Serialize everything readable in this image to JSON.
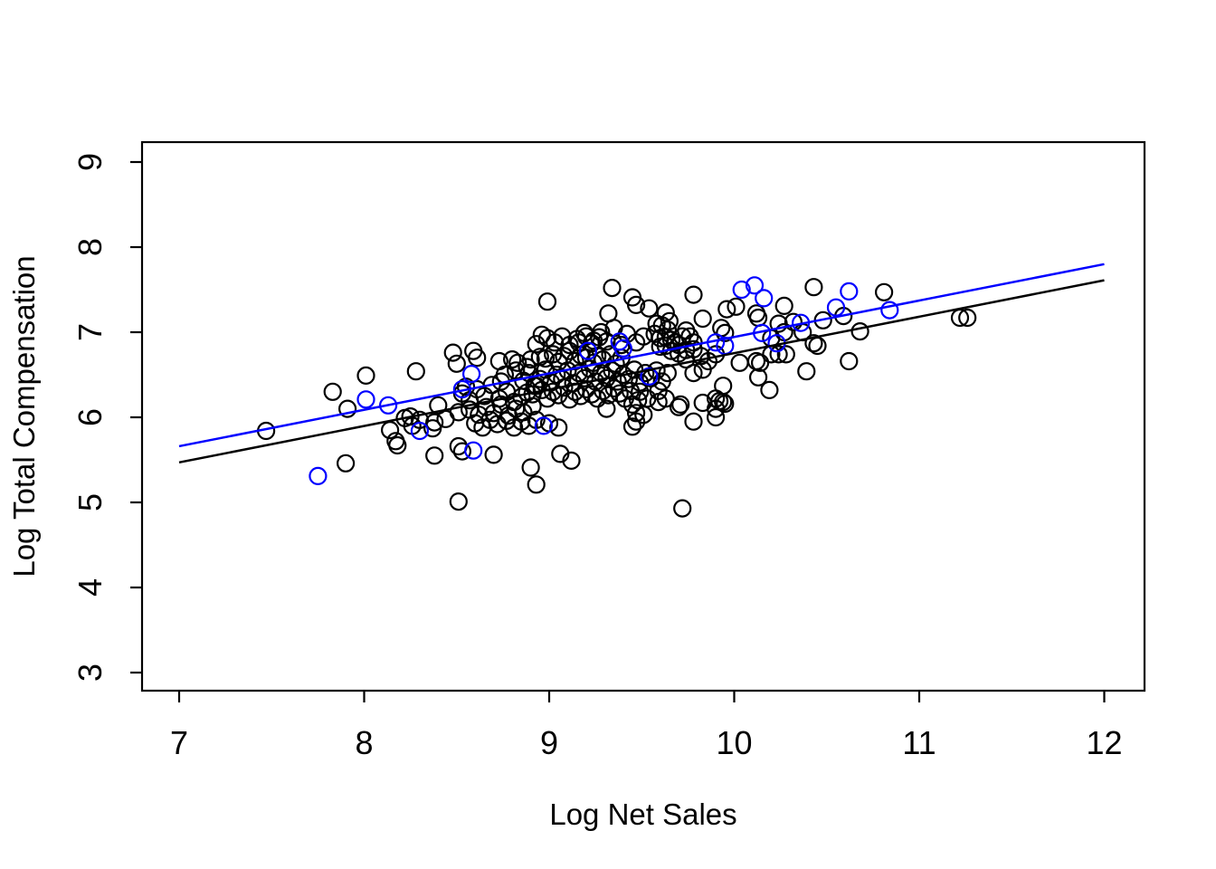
{
  "figure": {
    "xlabel": "Log Net Sales",
    "ylabel": "Log Total Compensation"
  },
  "colors": {
    "background": "#ffffff",
    "points_default": "#000000",
    "points_highlight": "#0000ff",
    "fit_line_default": "#000000",
    "fit_line_highlight": "#0000ff",
    "axis": "#000000"
  },
  "chart_data": {
    "type": "scatter",
    "title": "",
    "xlabel": "Log Net Sales",
    "ylabel": "Log Total Compensation",
    "xlim": [
      7,
      12
    ],
    "ylim": [
      3,
      9
    ],
    "x_ticks": [
      7,
      8,
      9,
      10,
      11,
      12
    ],
    "y_ticks": [
      3,
      4,
      5,
      6,
      7,
      8,
      9
    ],
    "grid": false,
    "legend": "none",
    "marker": "open-circle",
    "series": [
      {
        "name": "observations-black",
        "color": "#000000",
        "points": [
          [
            7.47,
            5.84
          ],
          [
            7.83,
            6.3
          ],
          [
            7.9,
            5.46
          ],
          [
            7.91,
            6.1
          ],
          [
            8.01,
            6.49
          ],
          [
            8.14,
            5.85
          ],
          [
            8.17,
            5.72
          ],
          [
            8.18,
            5.67
          ],
          [
            8.22,
            5.99
          ],
          [
            8.25,
            6.01
          ],
          [
            8.26,
            5.9
          ],
          [
            8.28,
            6.54
          ],
          [
            8.3,
            5.97
          ],
          [
            8.37,
            5.87
          ],
          [
            8.38,
            5.94
          ],
          [
            8.38,
            5.55
          ],
          [
            8.4,
            6.14
          ],
          [
            8.44,
            5.98
          ],
          [
            8.48,
            6.76
          ],
          [
            8.5,
            6.63
          ],
          [
            8.51,
            6.06
          ],
          [
            8.51,
            5.66
          ],
          [
            8.53,
            5.6
          ],
          [
            8.51,
            5.01
          ],
          [
            8.55,
            6.36
          ],
          [
            8.59,
            6.78
          ],
          [
            8.61,
            6.7
          ],
          [
            8.7,
            5.56
          ],
          [
            8.9,
            5.41
          ],
          [
            8.93,
            5.21
          ],
          [
            8.96,
            6.97
          ],
          [
            8.93,
            6.86
          ],
          [
            8.99,
            7.36
          ],
          [
            8.73,
            6.66
          ],
          [
            8.8,
            6.68
          ],
          [
            8.83,
            6.64
          ],
          [
            8.88,
            6.59
          ],
          [
            8.9,
            6.68
          ],
          [
            8.95,
            6.71
          ],
          [
            8.98,
            6.69
          ],
          [
            9.02,
            6.74
          ],
          [
            9.05,
            6.65
          ],
          [
            9.08,
            6.72
          ],
          [
            9.11,
            6.78
          ],
          [
            9.14,
            6.66
          ],
          [
            9.17,
            6.73
          ],
          [
            9.2,
            6.7
          ],
          [
            9.24,
            6.64
          ],
          [
            9.26,
            6.72
          ],
          [
            9.29,
            6.68
          ],
          [
            9.33,
            6.74
          ],
          [
            9.36,
            6.63
          ],
          [
            9.39,
            6.7
          ],
          [
            8.74,
            6.42
          ],
          [
            8.76,
            6.5
          ],
          [
            8.82,
            6.55
          ],
          [
            8.86,
            6.43
          ],
          [
            8.89,
            6.52
          ],
          [
            8.92,
            6.37
          ],
          [
            8.95,
            6.45
          ],
          [
            8.98,
            6.56
          ],
          [
            9.01,
            6.41
          ],
          [
            9.04,
            6.5
          ],
          [
            9.07,
            6.45
          ],
          [
            9.1,
            6.55
          ],
          [
            9.13,
            6.4
          ],
          [
            9.16,
            6.52
          ],
          [
            9.19,
            6.46
          ],
          [
            9.22,
            6.57
          ],
          [
            9.25,
            6.42
          ],
          [
            9.28,
            6.52
          ],
          [
            9.31,
            6.46
          ],
          [
            9.34,
            6.55
          ],
          [
            9.37,
            6.42
          ],
          [
            9.4,
            6.5
          ],
          [
            9.43,
            6.45
          ],
          [
            9.46,
            6.56
          ],
          [
            9.49,
            6.41
          ],
          [
            9.52,
            6.52
          ],
          [
            9.55,
            6.46
          ],
          [
            9.58,
            6.55
          ],
          [
            9.61,
            6.42
          ],
          [
            9.64,
            6.52
          ],
          [
            8.53,
            6.28
          ],
          [
            8.57,
            6.2
          ],
          [
            8.61,
            6.33
          ],
          [
            8.65,
            6.25
          ],
          [
            8.69,
            6.38
          ],
          [
            8.73,
            6.22
          ],
          [
            8.77,
            6.3
          ],
          [
            8.81,
            6.18
          ],
          [
            8.85,
            6.24
          ],
          [
            8.88,
            6.29
          ],
          [
            8.91,
            6.27
          ],
          [
            8.93,
            6.37
          ],
          [
            8.96,
            6.32
          ],
          [
            8.99,
            6.22
          ],
          [
            9.02,
            6.3
          ],
          [
            9.05,
            6.26
          ],
          [
            9.08,
            6.35
          ],
          [
            9.11,
            6.21
          ],
          [
            9.14,
            6.3
          ],
          [
            9.17,
            6.25
          ],
          [
            9.2,
            6.33
          ],
          [
            9.23,
            6.27
          ],
          [
            9.26,
            6.22
          ],
          [
            9.29,
            6.31
          ],
          [
            9.32,
            6.26
          ],
          [
            9.35,
            6.34
          ],
          [
            9.38,
            6.28
          ],
          [
            9.41,
            6.22
          ],
          [
            9.44,
            6.31
          ],
          [
            9.49,
            6.3
          ],
          [
            9.53,
            6.22
          ],
          [
            9.59,
            6.31
          ],
          [
            9.63,
            6.22
          ],
          [
            8.57,
            6.09
          ],
          [
            8.62,
            6.03
          ],
          [
            8.66,
            6.12
          ],
          [
            8.7,
            6.05
          ],
          [
            8.74,
            6.15
          ],
          [
            8.78,
            6.02
          ],
          [
            8.82,
            6.1
          ],
          [
            8.86,
            6.06
          ],
          [
            8.91,
            6.13
          ],
          [
            9.31,
            6.1
          ],
          [
            9.45,
            6.15
          ],
          [
            9.48,
            6.2
          ],
          [
            9.47,
            6.05
          ],
          [
            9.51,
            6.03
          ],
          [
            9.59,
            6.18
          ],
          [
            9.7,
            6.12
          ],
          [
            9.9,
            6.0
          ],
          [
            9.92,
            6.19
          ],
          [
            9.95,
            6.16
          ],
          [
            8.6,
            5.93
          ],
          [
            8.64,
            5.88
          ],
          [
            8.68,
            5.97
          ],
          [
            8.72,
            5.92
          ],
          [
            8.77,
            5.96
          ],
          [
            8.81,
            5.88
          ],
          [
            8.85,
            5.95
          ],
          [
            8.89,
            5.9
          ],
          [
            8.93,
            5.97
          ],
          [
            9.0,
            5.93
          ],
          [
            9.05,
            5.88
          ],
          [
            9.45,
            5.89
          ],
          [
            9.47,
            5.95
          ],
          [
            9.78,
            5.95
          ],
          [
            9.06,
            5.57
          ],
          [
            9.12,
            5.49
          ],
          [
            9.72,
            4.93
          ],
          [
            8.99,
            6.93
          ],
          [
            9.03,
            6.88
          ],
          [
            9.07,
            6.95
          ],
          [
            9.11,
            6.85
          ],
          [
            9.15,
            6.92
          ],
          [
            9.16,
            6.88
          ],
          [
            9.19,
            6.99
          ],
          [
            9.2,
            6.95
          ],
          [
            9.23,
            6.87
          ],
          [
            9.24,
            6.9
          ],
          [
            9.27,
            6.94
          ],
          [
            9.28,
            7.0
          ],
          [
            9.31,
            6.89
          ],
          [
            9.35,
            7.05
          ],
          [
            9.39,
            6.85
          ],
          [
            9.42,
            6.98
          ],
          [
            9.47,
            6.88
          ],
          [
            9.51,
            6.95
          ],
          [
            9.57,
            6.98
          ],
          [
            9.6,
            6.93
          ],
          [
            9.6,
            6.83
          ],
          [
            9.64,
            7.03
          ],
          [
            9.66,
            6.78
          ],
          [
            9.68,
            6.88
          ],
          [
            9.7,
            6.85
          ],
          [
            9.72,
            6.95
          ],
          [
            9.74,
            6.79
          ],
          [
            9.78,
            6.88
          ],
          [
            9.32,
            7.22
          ],
          [
            9.34,
            7.52
          ],
          [
            9.45,
            7.41
          ],
          [
            9.47,
            7.32
          ],
          [
            9.54,
            7.28
          ],
          [
            9.58,
            7.1
          ],
          [
            9.61,
            7.08
          ],
          [
            9.63,
            7.23
          ],
          [
            9.63,
            6.94
          ],
          [
            9.63,
            6.84
          ],
          [
            9.65,
            7.13
          ],
          [
            9.66,
            6.91
          ],
          [
            9.74,
            7.02
          ],
          [
            9.76,
            6.95
          ],
          [
            9.78,
            7.44
          ],
          [
            9.83,
            7.16
          ],
          [
            9.96,
            7.27
          ],
          [
            10.01,
            7.3
          ],
          [
            9.7,
            6.75
          ],
          [
            9.74,
            6.68
          ],
          [
            9.78,
            6.8
          ],
          [
            9.82,
            6.72
          ],
          [
            9.86,
            6.66
          ],
          [
            9.9,
            6.74
          ],
          [
            9.93,
            7.05
          ],
          [
            9.95,
            6.99
          ],
          [
            9.78,
            6.52
          ],
          [
            9.83,
            6.56
          ],
          [
            9.71,
            6.15
          ],
          [
            9.83,
            6.17
          ],
          [
            9.9,
            6.22
          ],
          [
            9.9,
            6.1
          ],
          [
            9.94,
            6.37
          ],
          [
            9.94,
            6.18
          ],
          [
            10.03,
            6.64
          ],
          [
            10.12,
            6.66
          ],
          [
            10.14,
            6.64
          ],
          [
            10.2,
            6.74
          ],
          [
            10.24,
            6.74
          ],
          [
            10.28,
            6.74
          ],
          [
            10.13,
            6.47
          ],
          [
            10.19,
            6.32
          ],
          [
            10.39,
            6.54
          ],
          [
            10.62,
            6.66
          ],
          [
            10.43,
            6.87
          ],
          [
            10.45,
            6.84
          ],
          [
            10.27,
            7.0
          ],
          [
            10.37,
            7.0
          ],
          [
            10.68,
            7.01
          ],
          [
            10.48,
            7.14
          ],
          [
            10.59,
            7.19
          ],
          [
            10.27,
            7.31
          ],
          [
            10.32,
            7.12
          ],
          [
            10.12,
            7.22
          ],
          [
            10.13,
            7.17
          ],
          [
            10.24,
            7.1
          ],
          [
            10.2,
            6.93
          ],
          [
            10.43,
            7.53
          ],
          [
            10.81,
            7.47
          ],
          [
            11.22,
            7.17
          ],
          [
            11.26,
            7.17
          ]
        ]
      },
      {
        "name": "observations-blue",
        "color": "#0000ff",
        "points": [
          [
            7.75,
            5.31
          ],
          [
            8.01,
            6.21
          ],
          [
            8.13,
            6.14
          ],
          [
            8.3,
            5.84
          ],
          [
            8.53,
            6.33
          ],
          [
            8.58,
            6.51
          ],
          [
            8.59,
            5.61
          ],
          [
            8.97,
            5.9
          ],
          [
            9.21,
            6.78
          ],
          [
            9.38,
            6.89
          ],
          [
            9.4,
            6.81
          ],
          [
            9.54,
            6.48
          ],
          [
            9.9,
            6.88
          ],
          [
            9.95,
            6.84
          ],
          [
            10.04,
            7.5
          ],
          [
            10.11,
            7.55
          ],
          [
            10.16,
            7.4
          ],
          [
            10.15,
            6.99
          ],
          [
            10.23,
            6.87
          ],
          [
            10.36,
            7.11
          ],
          [
            10.55,
            7.29
          ],
          [
            10.62,
            7.48
          ],
          [
            10.84,
            7.26
          ]
        ]
      }
    ],
    "lines": [
      {
        "name": "fit-line-black",
        "color": "#000000",
        "x": [
          7,
          12
        ],
        "y": [
          5.47,
          7.61
        ]
      },
      {
        "name": "fit-line-blue",
        "color": "#0000ff",
        "x": [
          7,
          12
        ],
        "y": [
          5.66,
          7.8
        ]
      }
    ]
  }
}
